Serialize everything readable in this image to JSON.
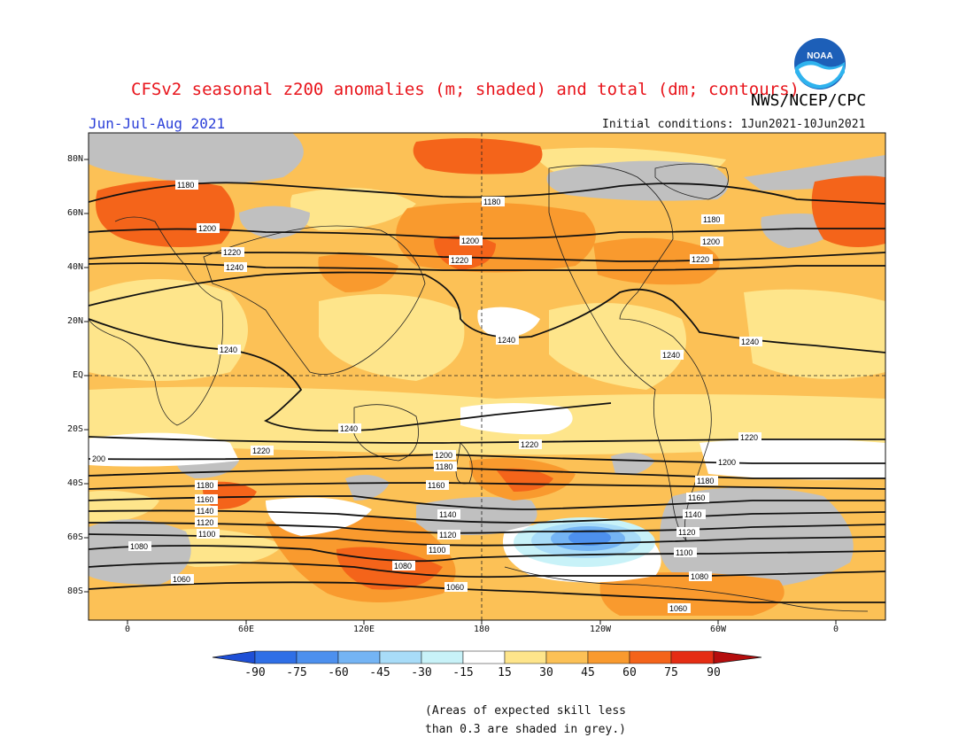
{
  "header": {
    "title": "CFSv2 seasonal z200 anomalies (m; shaded) and total (dm; contours)",
    "agency": "NWS/NCEP/CPC",
    "season": "Jun-Jul-Aug 2021",
    "initial_conditions": "Initial conditions: 1Jun2021-10Jun2021"
  },
  "logo": {
    "text": "NOAA",
    "icon": "noaa-logo"
  },
  "axes": {
    "lat_labels": [
      "80N",
      "60N",
      "40N",
      "20N",
      "EQ",
      "20S",
      "40S",
      "60S",
      "80S"
    ],
    "lon_labels": [
      "0",
      "60E",
      "120E",
      "180",
      "120W",
      "60W",
      "0"
    ]
  },
  "contour_labels": [
    "1180",
    "1200",
    "1220",
    "1240",
    "1160",
    "1140",
    "1120",
    "1100",
    "1080",
    "1060",
    "200"
  ],
  "colorbar": {
    "labels": [
      "-90",
      "-75",
      "-60",
      "-45",
      "-30",
      "-15",
      "15",
      "30",
      "45",
      "60",
      "75",
      "90"
    ],
    "colors": [
      "#1e4fd6",
      "#2f6fe6",
      "#4d90ee",
      "#74b4f4",
      "#a8dcf8",
      "#c8f2f8",
      "#ffffff",
      "#fee58b",
      "#fcc156",
      "#f99a2e",
      "#f4641a",
      "#e52d14",
      "#b50d0d"
    ],
    "grey_note": "#c0c0c0"
  },
  "footnote": {
    "line1": "(Areas of expected skill less",
    "line2": "than 0.3 are shaded in grey.)"
  },
  "palette": {
    "ocean_background": "#fcc156",
    "pale": "#fee58b",
    "strong": "#f4641a",
    "grey": "#c0c0c0",
    "white": "#ffffff",
    "blue_light": "#a8dcf8",
    "blue_mid": "#4d90ee"
  }
}
